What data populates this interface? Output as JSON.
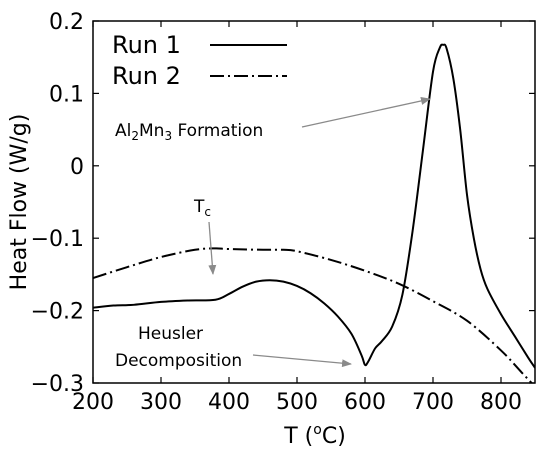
{
  "chart_data": {
    "type": "line",
    "title": "",
    "xlabel": "T",
    "xlabel_unit": "(°C)",
    "ylabel": "Heat Flow (W/g)",
    "xlim": [
      200,
      850
    ],
    "ylim": [
      -0.3,
      0.2
    ],
    "xticks": [
      200,
      300,
      400,
      500,
      600,
      700,
      800
    ],
    "yticks": [
      -0.3,
      -0.2,
      -0.1,
      0,
      0.1,
      0.2
    ],
    "xtick_labels": [
      "200",
      "300",
      "400",
      "500",
      "600",
      "700",
      "800"
    ],
    "ytick_labels": [
      "−0.3",
      "−0.2",
      "−0.1",
      "0",
      "0.1",
      "0.2"
    ],
    "grid": false,
    "legend_position": "top-left",
    "series": [
      {
        "name": "Run 1",
        "line_style": "solid",
        "color": "#000000",
        "x": [
          200,
          230,
          260,
          300,
          340,
          380,
          400,
          420,
          440,
          460,
          480,
          500,
          520,
          540,
          560,
          580,
          595,
          600,
          605,
          615,
          625,
          640,
          655,
          670,
          685,
          700,
          710,
          715,
          720,
          730,
          740,
          750,
          760,
          770,
          780,
          800,
          820,
          840,
          850
        ],
        "y": [
          -0.196,
          -0.193,
          -0.192,
          -0.188,
          -0.186,
          -0.185,
          -0.177,
          -0.167,
          -0.16,
          -0.158,
          -0.16,
          -0.166,
          -0.176,
          -0.19,
          -0.208,
          -0.232,
          -0.262,
          -0.275,
          -0.27,
          -0.252,
          -0.242,
          -0.222,
          -0.178,
          -0.09,
          0.02,
          0.13,
          0.163,
          0.167,
          0.162,
          0.12,
          0.05,
          -0.04,
          -0.1,
          -0.143,
          -0.17,
          -0.205,
          -0.235,
          -0.265,
          -0.279
        ]
      },
      {
        "name": "Run 2",
        "line_style": "dash-dot",
        "color": "#000000",
        "x": [
          200,
          250,
          300,
          350,
          380,
          400,
          450,
          480,
          500,
          550,
          600,
          650,
          700,
          750,
          800,
          830,
          850
        ],
        "y": [
          -0.155,
          -0.14,
          -0.126,
          -0.116,
          -0.114,
          -0.115,
          -0.116,
          -0.116,
          -0.118,
          -0.13,
          -0.145,
          -0.163,
          -0.187,
          -0.214,
          -0.255,
          -0.285,
          -0.305
        ]
      }
    ],
    "annotations": [
      {
        "text": "Tc",
        "main": "T",
        "sub": "c",
        "arrow_to": [
          380,
          -0.148
        ]
      },
      {
        "text": "Al2Mn3 Formation",
        "arrow_to": [
          705,
          0.091
        ]
      },
      {
        "text_lines": [
          "Heusler",
          "Decomposition"
        ],
        "arrow_to": [
          593,
          -0.272
        ]
      }
    ]
  }
}
